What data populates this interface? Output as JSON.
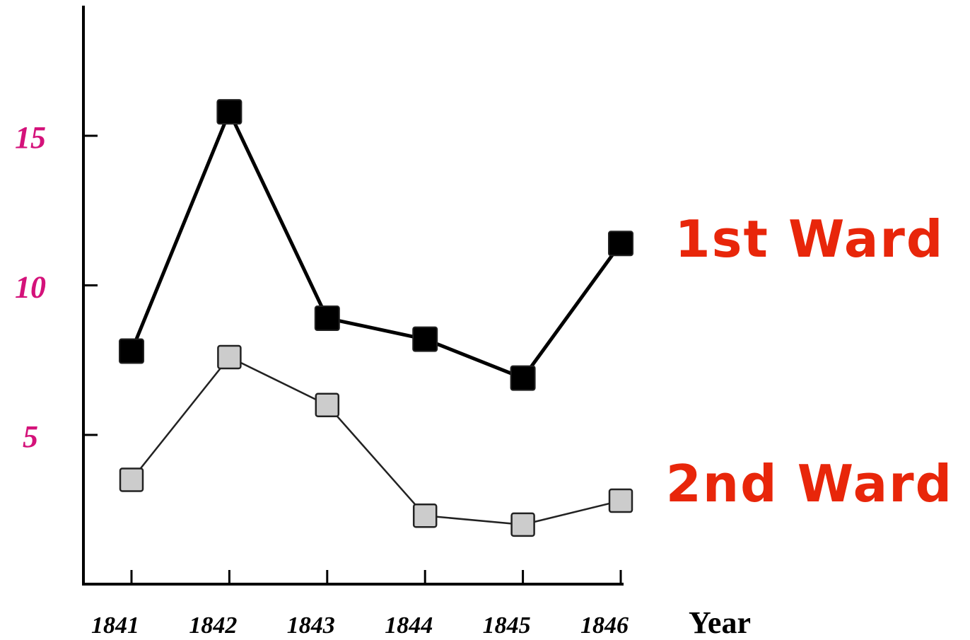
{
  "chart_data": {
    "type": "line",
    "x": [
      "1841",
      "1842",
      "1843",
      "1844",
      "1845",
      "1846"
    ],
    "xlabel": "Year",
    "ylabel": "",
    "title": "",
    "yticks": [
      "5",
      "10",
      "15"
    ],
    "ytick_values": [
      5,
      10,
      15
    ],
    "ylim": [
      0,
      19.5
    ],
    "grid": false,
    "series": [
      {
        "name": "1st Ward",
        "values": [
          7.8,
          15.8,
          8.9,
          8.2,
          6.9,
          11.4
        ],
        "line_color": "#000000",
        "marker_color": "#000000",
        "label_color": "#e8260a"
      },
      {
        "name": "2nd Ward",
        "values": [
          3.5,
          7.6,
          6.0,
          2.3,
          2.0,
          2.8
        ],
        "line_color": "#222222",
        "marker_color": "#cccccc",
        "label_color": "#e8260a"
      }
    ],
    "ytick_color": "#d4127a",
    "axis_color": "#000000"
  }
}
